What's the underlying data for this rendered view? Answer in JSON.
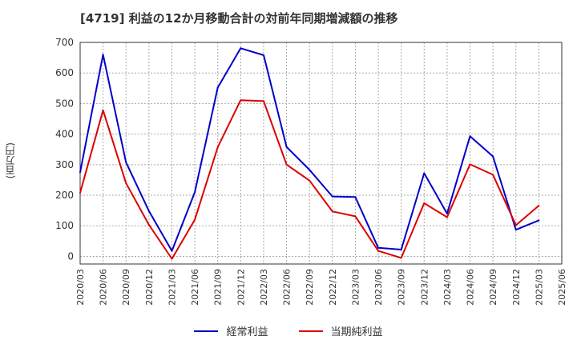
{
  "chart_data": {
    "type": "line",
    "title": "[4719]  利益の12か月移動合計の対前年同期増減額の推移",
    "ylabel": "(百万円)",
    "ylim": [
      -25,
      700
    ],
    "yticks": [
      0,
      100,
      200,
      300,
      400,
      500,
      600,
      700
    ],
    "categories": [
      "2020/03",
      "2020/06",
      "2020/09",
      "2020/12",
      "2021/03",
      "2021/06",
      "2021/09",
      "2021/12",
      "2022/03",
      "2022/06",
      "2022/09",
      "2022/12",
      "2023/03",
      "2023/06",
      "2023/09",
      "2023/12",
      "2024/03",
      "2024/06",
      "2024/09",
      "2024/12",
      "2025/03",
      "2025/06"
    ],
    "series": [
      {
        "name": "経常利益",
        "color": "#0000cc",
        "values": [
          275,
          660,
          308,
          148,
          18,
          210,
          552,
          681,
          658,
          358,
          283,
          196,
          194,
          28,
          22,
          272,
          140,
          393,
          327,
          87,
          118,
          null
        ]
      },
      {
        "name": "当期純利益",
        "color": "#dd0000",
        "values": [
          208,
          478,
          240,
          103,
          -8,
          120,
          357,
          511,
          508,
          300,
          248,
          147,
          131,
          18,
          -5,
          174,
          128,
          301,
          267,
          102,
          166,
          null
        ]
      }
    ]
  }
}
